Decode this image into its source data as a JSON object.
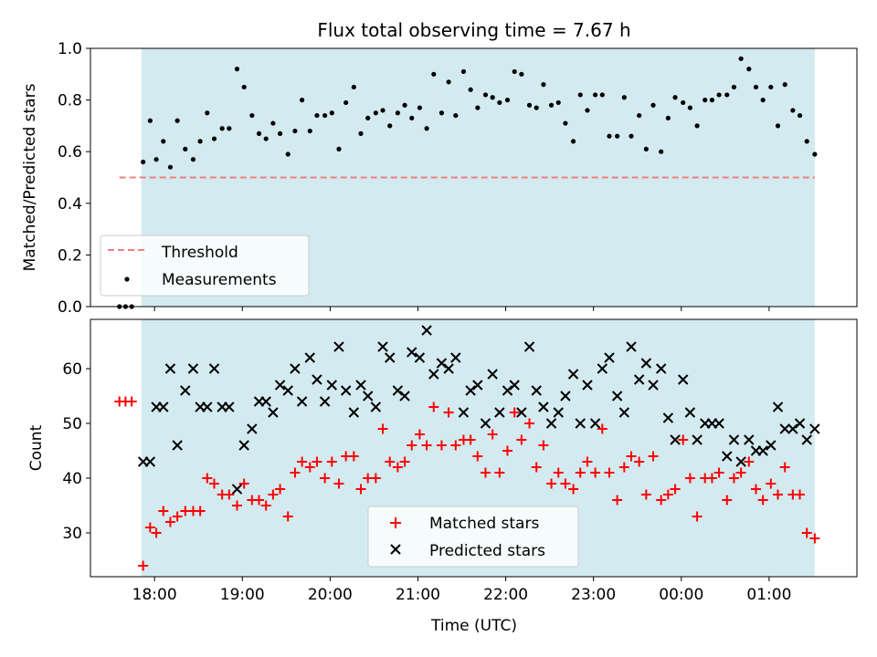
{
  "chart_data": [
    {
      "type": "scatter",
      "title": "Flux total observing time = 7.67 h",
      "xlabel": "",
      "ylabel": "Matched/Predicted stars",
      "xlim": [
        17.27,
        26.0
      ],
      "ylim": [
        0.0,
        1.0
      ],
      "yticks": [
        0.0,
        0.2,
        0.4,
        0.6,
        0.8,
        1.0
      ],
      "y_tick_labels": [
        "0.0",
        "0.2",
        "0.4",
        "0.6",
        "0.8",
        "1.0"
      ],
      "shaded_span": [
        17.85,
        25.52
      ],
      "shaded_color": "#d3eaf0",
      "threshold": {
        "name": "Threshold",
        "y": 0.5,
        "x_range": [
          17.6,
          25.52
        ],
        "color": "#f08080",
        "style": "dashed"
      },
      "series": [
        {
          "name": "Measurements",
          "marker": "dot",
          "color": "#000000",
          "x": [
            17.6,
            17.67,
            17.74,
            17.87,
            17.95,
            18.02,
            18.1,
            18.18,
            18.26,
            18.35,
            18.44,
            18.52,
            18.6,
            18.68,
            18.77,
            18.85,
            18.94,
            19.02,
            19.11,
            19.19,
            19.27,
            19.35,
            19.43,
            19.52,
            19.6,
            19.68,
            19.77,
            19.85,
            19.94,
            20.02,
            20.1,
            20.18,
            20.27,
            20.35,
            20.43,
            20.52,
            20.6,
            20.68,
            20.77,
            20.85,
            20.93,
            21.02,
            21.1,
            21.18,
            21.27,
            21.35,
            21.43,
            21.52,
            21.6,
            21.68,
            21.77,
            21.85,
            21.93,
            22.02,
            22.1,
            22.18,
            22.27,
            22.35,
            22.43,
            22.52,
            22.6,
            22.68,
            22.77,
            22.85,
            22.93,
            23.02,
            23.1,
            23.18,
            23.27,
            23.35,
            23.43,
            23.52,
            23.6,
            23.68,
            23.77,
            23.85,
            23.93,
            24.02,
            24.1,
            24.18,
            24.27,
            24.35,
            24.43,
            24.52,
            24.6,
            24.68,
            24.77,
            24.85,
            24.93,
            25.02,
            25.1,
            25.18,
            25.27,
            25.35,
            25.43,
            25.52
          ],
          "y": [
            0.0,
            0.0,
            0.0,
            0.56,
            0.72,
            0.57,
            0.64,
            0.54,
            0.72,
            0.61,
            0.57,
            0.64,
            0.75,
            0.65,
            0.69,
            0.69,
            0.92,
            0.85,
            0.74,
            0.67,
            0.65,
            0.71,
            0.67,
            0.59,
            0.68,
            0.8,
            0.68,
            0.74,
            0.74,
            0.75,
            0.61,
            0.79,
            0.85,
            0.67,
            0.73,
            0.75,
            0.76,
            0.7,
            0.75,
            0.78,
            0.73,
            0.77,
            0.69,
            0.9,
            0.75,
            0.87,
            0.74,
            0.91,
            0.84,
            0.77,
            0.82,
            0.81,
            0.79,
            0.8,
            0.91,
            0.9,
            0.78,
            0.77,
            0.86,
            0.78,
            0.79,
            0.71,
            0.64,
            0.82,
            0.76,
            0.82,
            0.82,
            0.66,
            0.66,
            0.81,
            0.66,
            0.74,
            0.61,
            0.78,
            0.6,
            0.73,
            0.81,
            0.79,
            0.77,
            0.7,
            0.8,
            0.8,
            0.82,
            0.82,
            0.85,
            0.96,
            0.92,
            0.85,
            0.8,
            0.85,
            0.7,
            0.86,
            0.76,
            0.74,
            0.64,
            0.59
          ]
        }
      ],
      "legend": {
        "placement": "lower-left",
        "entries": [
          "Threshold",
          "Measurements"
        ]
      }
    },
    {
      "type": "scatter",
      "title": "",
      "xlabel": "Time (UTC)",
      "ylabel": "Count",
      "xlim": [
        17.27,
        26.0
      ],
      "ylim": [
        22.0,
        69.0
      ],
      "yticks": [
        30,
        40,
        50,
        60
      ],
      "y_tick_labels": [
        "30",
        "40",
        "50",
        "60"
      ],
      "xticks": [
        18,
        19,
        20,
        21,
        22,
        23,
        24,
        25
      ],
      "x_tick_labels": [
        "18:00",
        "19:00",
        "20:00",
        "21:00",
        "22:00",
        "23:00",
        "00:00",
        "01:00"
      ],
      "shaded_span": [
        17.85,
        25.52
      ],
      "shaded_color": "#d3eaf0",
      "series": [
        {
          "name": "Matched stars",
          "marker": "plus",
          "color": "#ff0000",
          "x": [
            17.6,
            17.67,
            17.74,
            17.87,
            17.95,
            18.02,
            18.1,
            18.18,
            18.26,
            18.35,
            18.44,
            18.52,
            18.6,
            18.68,
            18.77,
            18.85,
            18.94,
            19.02,
            19.11,
            19.19,
            19.27,
            19.35,
            19.43,
            19.52,
            19.6,
            19.68,
            19.77,
            19.85,
            19.94,
            20.02,
            20.1,
            20.18,
            20.27,
            20.35,
            20.43,
            20.52,
            20.6,
            20.68,
            20.77,
            20.85,
            20.93,
            21.02,
            21.1,
            21.18,
            21.27,
            21.35,
            21.43,
            21.52,
            21.6,
            21.68,
            21.77,
            21.85,
            21.93,
            22.02,
            22.1,
            22.18,
            22.27,
            22.35,
            22.43,
            22.52,
            22.6,
            22.68,
            22.77,
            22.85,
            22.93,
            23.02,
            23.1,
            23.18,
            23.27,
            23.35,
            23.43,
            23.52,
            23.6,
            23.68,
            23.77,
            23.85,
            23.93,
            24.02,
            24.1,
            24.18,
            24.27,
            24.35,
            24.43,
            24.52,
            24.6,
            24.68,
            24.77,
            24.85,
            24.93,
            25.02,
            25.1,
            25.18,
            25.27,
            25.35,
            25.43,
            25.52
          ],
          "y": [
            54,
            54,
            54,
            24,
            31,
            30,
            34,
            32,
            33,
            34,
            34,
            34,
            40,
            39,
            37,
            37,
            35,
            39,
            36,
            36,
            35,
            37,
            38,
            33,
            41,
            43,
            42,
            43,
            40,
            43,
            39,
            44,
            44,
            38,
            40,
            40,
            49,
            43,
            42,
            43,
            46,
            48,
            46,
            53,
            46,
            52,
            46,
            47,
            47,
            44,
            41,
            48,
            41,
            45,
            52,
            47,
            50,
            42,
            46,
            39,
            41,
            39,
            38,
            41,
            43,
            41,
            49,
            41,
            36,
            42,
            44,
            43,
            37,
            44,
            36,
            37,
            38,
            47,
            40,
            33,
            40,
            40,
            41,
            36,
            40,
            41,
            43,
            38,
            36,
            39,
            37,
            42,
            37,
            37,
            30,
            29
          ]
        },
        {
          "name": "Predicted stars",
          "marker": "x",
          "color": "#000000",
          "x": [
            17.87,
            17.95,
            18.02,
            18.1,
            18.18,
            18.26,
            18.35,
            18.44,
            18.52,
            18.6,
            18.68,
            18.77,
            18.85,
            18.94,
            19.02,
            19.11,
            19.19,
            19.27,
            19.35,
            19.43,
            19.52,
            19.6,
            19.68,
            19.77,
            19.85,
            19.94,
            20.02,
            20.1,
            20.18,
            20.27,
            20.35,
            20.43,
            20.52,
            20.6,
            20.68,
            20.77,
            20.85,
            20.93,
            21.02,
            21.1,
            21.18,
            21.27,
            21.35,
            21.43,
            21.52,
            21.6,
            21.68,
            21.77,
            21.85,
            21.93,
            22.02,
            22.1,
            22.18,
            22.27,
            22.35,
            22.43,
            22.52,
            22.6,
            22.68,
            22.77,
            22.85,
            22.93,
            23.02,
            23.1,
            23.18,
            23.27,
            23.35,
            23.43,
            23.52,
            23.6,
            23.68,
            23.77,
            23.85,
            23.93,
            24.02,
            24.1,
            24.18,
            24.27,
            24.35,
            24.43,
            24.52,
            24.6,
            24.68,
            24.77,
            24.85,
            24.93,
            25.02,
            25.1,
            25.18,
            25.27,
            25.35,
            25.43,
            25.52
          ],
          "y": [
            43,
            43,
            53,
            53,
            60,
            46,
            56,
            60,
            53,
            53,
            60,
            53,
            53,
            38,
            46,
            49,
            54,
            54,
            52,
            57,
            56,
            60,
            54,
            62,
            58,
            54,
            57,
            64,
            56,
            52,
            57,
            55,
            53,
            64,
            62,
            56,
            55,
            63,
            62,
            67,
            59,
            61,
            60,
            62,
            52,
            56,
            57,
            50,
            59,
            52,
            56,
            57,
            52,
            64,
            56,
            53,
            50,
            52,
            55,
            59,
            50,
            57,
            50,
            60,
            62,
            55,
            52,
            64,
            58,
            61,
            57,
            60,
            51,
            47,
            58,
            52,
            47,
            50,
            50,
            50,
            44,
            47,
            43,
            47,
            45,
            45,
            46,
            53,
            49,
            49,
            50,
            47,
            49
          ]
        }
      ],
      "legend": {
        "placement": "lower-center",
        "entries": [
          "Matched stars",
          "Predicted stars"
        ]
      }
    }
  ]
}
